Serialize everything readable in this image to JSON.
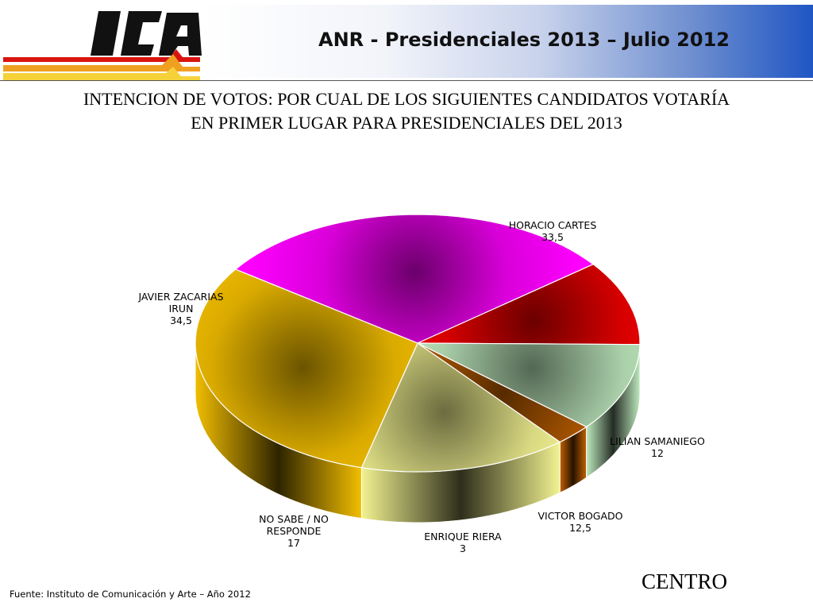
{
  "header": {
    "title": "ANR - Presidenciales 2013 – Julio 2012",
    "logo_text": "ICA"
  },
  "subtitle_line1": "INTENCION DE VOTOS: POR CUAL DE LOS SIGUIENTES CANDIDATOS VOTARÍA",
  "subtitle_line2": "EN PRIMER LUGAR PARA PRESIDENCIALES DEL 2013",
  "footer": {
    "source": "Fuente: Instituto de Comunicación y Arte – Año 2012",
    "region": "CENTRO"
  },
  "chart_data": {
    "type": "pie",
    "style": "3d",
    "title": "",
    "slices": [
      {
        "label": "HORACIO CARTES",
        "value": 33.5,
        "value_text": "33,5",
        "color": "#ff00ff"
      },
      {
        "label": "LILIAN SAMANIEGO",
        "value": 12,
        "value_text": "12",
        "color": "#ff0000"
      },
      {
        "label": "VICTOR BOGADO",
        "value": 12.5,
        "value_text": "12,5",
        "color": "#c8f5c8"
      },
      {
        "label": "ENRIQUE RIERA",
        "value": 3,
        "value_text": "3",
        "color": "#cc6600"
      },
      {
        "label": "NO SABE / NO RESPONDE",
        "value": 17,
        "value_text": "17",
        "color": "#ffff99"
      },
      {
        "label": "JAVIER ZACARIAS IRUN",
        "value": 34.5,
        "value_text": "34,5",
        "color": "#ffc800"
      }
    ]
  }
}
